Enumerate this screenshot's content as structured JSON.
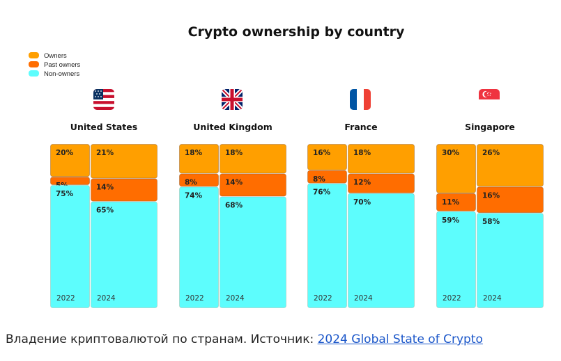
{
  "colors": {
    "owners": "#FF9F00",
    "past_owners": "#FF6D00",
    "non_owners": "#5DFDFD",
    "link": "#1a56c9"
  },
  "caption": {
    "text": "Владение криптовалютой по странам. Источник: ",
    "link_text": "2024 Global State of Crypto"
  },
  "chart_data": {
    "type": "bar",
    "subtype": "stacked-100-mekko",
    "title": "Crypto ownership by country",
    "legend": {
      "placement": "top-left",
      "entries": [
        {
          "key": "owners",
          "label": "Owners",
          "color": "#FF9F00"
        },
        {
          "key": "past_owners",
          "label": "Past owners",
          "color": "#FF6D00"
        },
        {
          "key": "non_owners",
          "label": "Non-owners",
          "color": "#5DFDFD"
        }
      ]
    },
    "series_order": [
      "owners",
      "past_owners",
      "non_owners"
    ],
    "groups": [
      {
        "country": "United States",
        "flag": "us-flag-icon",
        "years": [
          {
            "year": "2022",
            "owners": 20,
            "past_owners": 5,
            "non_owners": 75
          },
          {
            "year": "2024",
            "owners": 21,
            "past_owners": 14,
            "non_owners": 65
          }
        ]
      },
      {
        "country": "United Kingdom",
        "flag": "uk-flag-icon",
        "years": [
          {
            "year": "2022",
            "owners": 18,
            "past_owners": 8,
            "non_owners": 74
          },
          {
            "year": "2024",
            "owners": 18,
            "past_owners": 14,
            "non_owners": 68
          }
        ]
      },
      {
        "country": "France",
        "flag": "france-flag-icon",
        "years": [
          {
            "year": "2022",
            "owners": 16,
            "past_owners": 8,
            "non_owners": 76
          },
          {
            "year": "2024",
            "owners": 18,
            "past_owners": 12,
            "non_owners": 70
          }
        ]
      },
      {
        "country": "Singapore",
        "flag": "singapore-flag-icon",
        "years": [
          {
            "year": "2022",
            "owners": 30,
            "past_owners": 11,
            "non_owners": 59
          },
          {
            "year": "2024",
            "owners": 26,
            "past_owners": 16,
            "non_owners": 58
          }
        ]
      }
    ]
  }
}
